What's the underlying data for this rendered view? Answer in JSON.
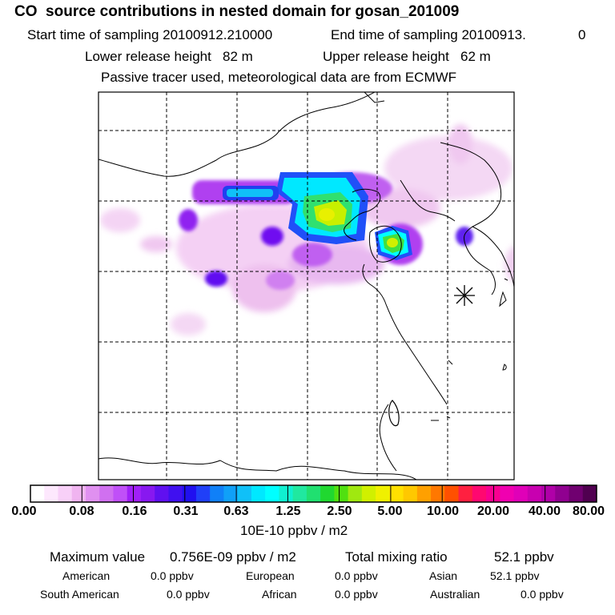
{
  "title": "CO  source contributions in nested domain for gosan_201009",
  "sampling": {
    "start_label": "Start time of sampling 20100912.210000",
    "end_label": "End time of sampling 20100913.",
    "end_suffix": "0"
  },
  "release": {
    "lower": "Lower release height   82 m",
    "upper": "Upper release height   62 m"
  },
  "note": "Passive tracer used, meteorological data are from ECMWF",
  "colorbar": {
    "ticks": [
      "0.00",
      "0.08",
      "0.16",
      "0.31",
      "0.63",
      "1.25",
      "2.50",
      "5.00",
      "10.00",
      "20.00",
      "40.00",
      "80.00"
    ],
    "unit": "10E-10 ppbv / m2",
    "colors": [
      "#ffffff",
      "#fde8fd",
      "#f8d0f8",
      "#f0b4f0",
      "#e090f0",
      "#d070f0",
      "#c050f8",
      "#a020f8",
      "#8818f0",
      "#6010f0",
      "#4010f0",
      "#2010f0",
      "#2040f8",
      "#1080f8",
      "#10a0f8",
      "#10c0f8",
      "#00e8ff",
      "#00ffff",
      "#10f0d0",
      "#20e8a0",
      "#20e070",
      "#20d830",
      "#50e010",
      "#a0e810",
      "#d0f000",
      "#f0f000",
      "#ffe000",
      "#ffc800",
      "#ffa000",
      "#ff7800",
      "#ff5000",
      "#ff2040",
      "#ff0870",
      "#f80090",
      "#f000b0",
      "#e000b8",
      "#c800b0",
      "#b000a8",
      "#900090",
      "#700070",
      "#500050"
    ]
  },
  "summary": {
    "max_label": "Maximum value",
    "max_value": "0.756E-09 ppbv / m2",
    "total_label": "Total mixing ratio",
    "total_value": "52.1 ppbv"
  },
  "sources": [
    {
      "name": "American",
      "value": "0.0 ppbv"
    },
    {
      "name": "European",
      "value": "0.0 ppbv"
    },
    {
      "name": "Asian",
      "value": "52.1 ppbv"
    },
    {
      "name": "South American",
      "value": "0.0 ppbv"
    },
    {
      "name": "African",
      "value": "0.0 ppbv"
    },
    {
      "name": "Australian",
      "value": "0.0 ppbv"
    }
  ]
}
